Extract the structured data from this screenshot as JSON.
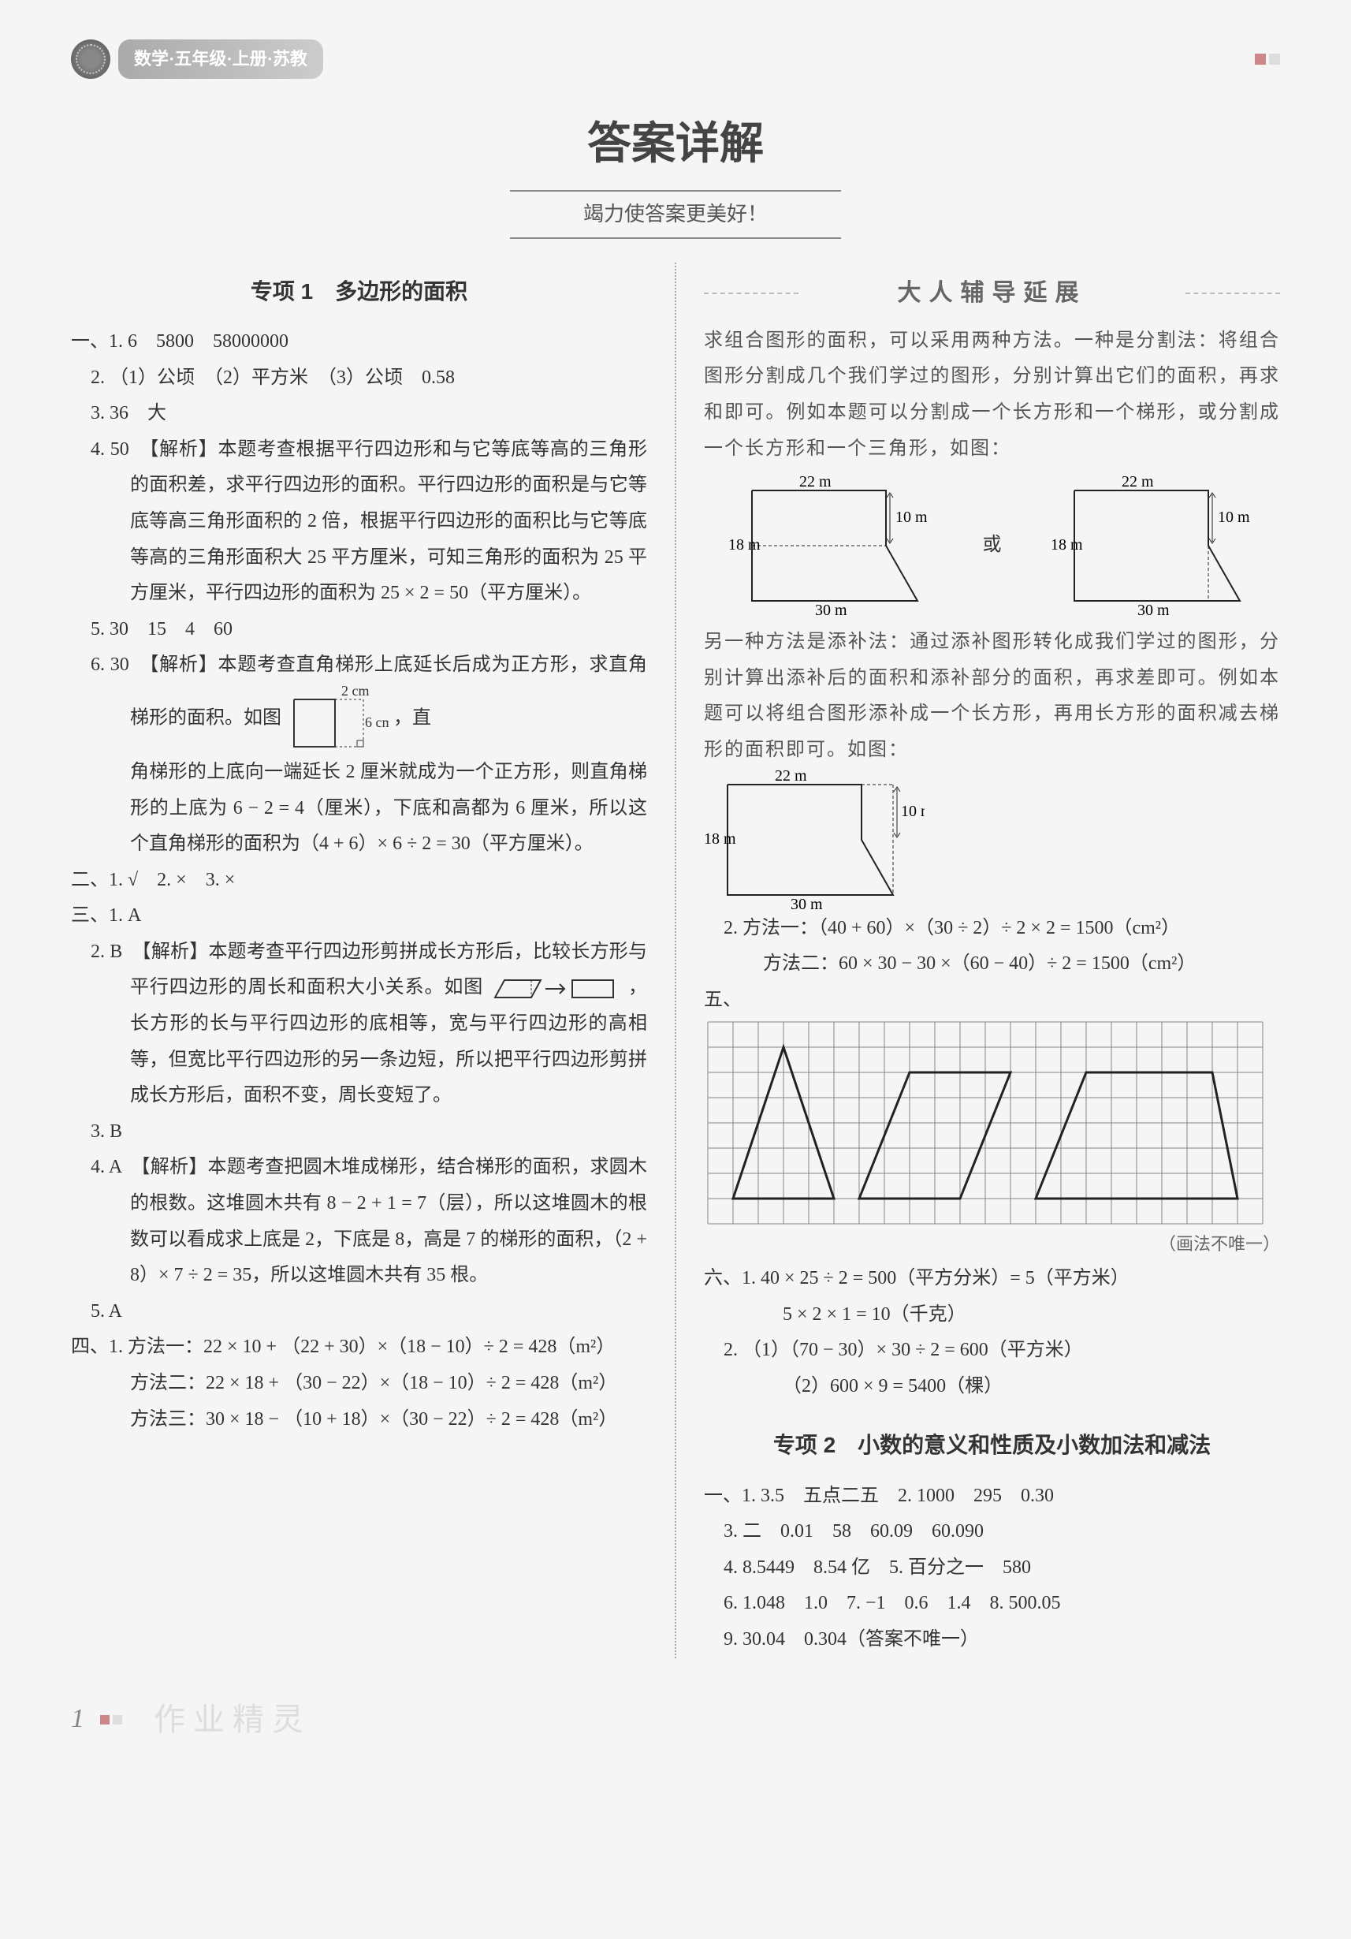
{
  "header": {
    "subject": "数学·五年级·上册·苏教"
  },
  "title": "答案详解",
  "subtitle": "竭力使答案更美好！",
  "left": {
    "section1_title": "专项 1　多边形的面积",
    "l1": "一、1. 6　5800　58000000",
    "l2": "2. （1）公顷　（2）平方米　（3）公顷　0.58",
    "l3": "3. 36　大",
    "l4": "4. 50　【解析】本题考查根据平行四边形和与它等底等高的三角形的面积差，求平行四边形的面积。平行四边形的面积是与它等底等高三角形面积的 2 倍，根据平行四边形的面积比与它等底等高的三角形面积大 25 平方厘米，可知三角形的面积为 25 平方厘米，平行四边形的面积为 25 × 2 = 50（平方厘米）。",
    "l5": "5. 30　15　4　60",
    "l6a": "6. 30　【解析】本题考查直角梯形上底延长后成为正方形，求直角梯形的面积。如图",
    "l6_fig_top": "2 cm",
    "l6_fig_side": "6 cm",
    "l6b": "角梯形的上底向一端延长 2 厘米就成为一个正方形，则直角梯形的上底为 6 − 2 = 4（厘米），下底和高都为 6 厘米，所以这个直角梯形的面积为（4 + 6）× 6 ÷ 2 = 30（平方厘米）。",
    "l7": "二、1. √　2. ×　3. ×",
    "l8": "三、1. A",
    "l9a": "2. B　【解析】本题考查平行四边形剪拼成长方形后，比较长方形与平行四边形的周长和面积大小关系。如图",
    "l9b": "，长方形的长与平行四边形的底相等，宽与平行四边形的高相等，但宽比平行四边形的另一条边短，所以把平行四边形剪拼成长方形后，面积不变，周长变短了。",
    "l10": "3. B",
    "l11": "4. A　【解析】本题考查把圆木堆成梯形，结合梯形的面积，求圆木的根数。这堆圆木共有 8 − 2 + 1 = 7（层），所以这堆圆木的根数可以看成求上底是 2，下底是 8，高是 7 的梯形的面积，（2 + 8）× 7 ÷ 2 = 35，所以这堆圆木共有 35 根。",
    "l12": "5. A",
    "l13": "四、1. 方法一：22 × 10 + （22 + 30）×（18 − 10）÷ 2 = 428（m²）",
    "l14": "方法二：22 × 18 + （30 − 22）×（18 − 10）÷ 2 = 428（m²）",
    "l15": "方法三：30 × 18 − （10 + 18）×（30 − 22）÷ 2 = 428（m²）"
  },
  "right": {
    "ext_heading": "大人辅导延展",
    "ext1": "求组合图形的面积，可以采用两种方法。一种是分割法：将组合图形分割成几个我们学过的图形，分别计算出它们的面积，再求和即可。例如本题可以分割成一个长方形和一个梯形，或分割成一个长方形和一个三角形，如图：",
    "d1": {
      "w22": "22 m",
      "h10": "10 m",
      "h18": "18 m",
      "w30": "30 m",
      "or": "或"
    },
    "ext2": "另一种方法是添补法：通过添补图形转化成我们学过的图形，分别计算出添补后的面积和添补部分的面积，再求差即可。例如本题可以将组合图形添补成一个长方形，再用长方形的面积减去梯形的面积即可。如图：",
    "r2a": "2. 方法一：（40 + 60）×（30 ÷ 2）÷ 2 × 2 = 1500（cm²）",
    "r2b": "方法二：60 × 30 − 30 ×（60 − 40）÷ 2 = 1500（cm²）",
    "r5": "五、",
    "grid": {
      "cols": 22,
      "rows": 8,
      "cell": 32,
      "stroke": "#888",
      "shape_stroke": "#222",
      "tri": [
        [
          1,
          7
        ],
        [
          3,
          1
        ],
        [
          5,
          7
        ]
      ],
      "para": [
        [
          6,
          7
        ],
        [
          8,
          2
        ],
        [
          12,
          2
        ],
        [
          10,
          7
        ]
      ],
      "trap": [
        [
          13,
          7
        ],
        [
          15,
          2
        ],
        [
          20,
          2
        ],
        [
          21,
          7
        ]
      ]
    },
    "caption5": "（画法不唯一）",
    "r6a": "六、1. 40 × 25 ÷ 2 = 500（平方分米）= 5（平方米）",
    "r6b": "5 × 2 × 1 = 10（千克）",
    "r6c": "2. （1）（70 − 30）× 30 ÷ 2 = 600（平方米）",
    "r6d": "（2）600 × 9 = 5400（棵）",
    "section2_title": "专项 2　小数的意义和性质及小数加法和减法",
    "s2l1": "一、1. 3.5　五点二五　2. 1000　295　0.30",
    "s2l2": "3. 二　0.01　58　60.09　60.090",
    "s2l3": "4. 8.5449　8.54 亿　5. 百分之一　580",
    "s2l4": "6. 1.048　1.0　7. −1　0.6　1.4　8. 500.05",
    "s2l5": "9. 30.04　0.304（答案不唯一）"
  },
  "footer": {
    "page": "1",
    "watermark": "作业精灵"
  },
  "colors": {
    "text": "#333333",
    "grid": "#888888",
    "shape": "#222222",
    "bg": "#f5f5f5"
  }
}
